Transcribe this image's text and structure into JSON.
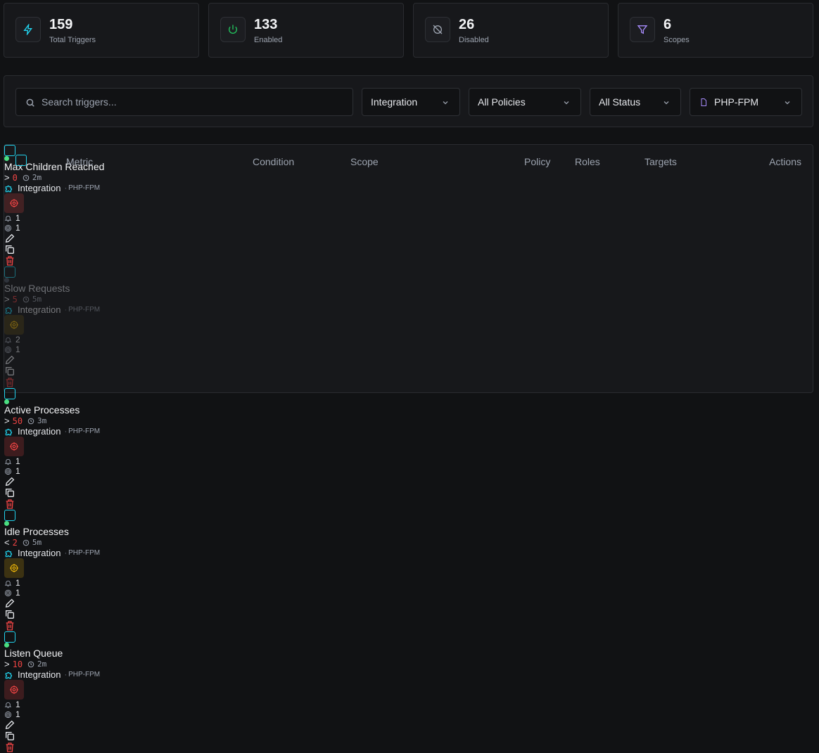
{
  "stats": [
    {
      "value": 159,
      "label": "Total Triggers"
    },
    {
      "value": 133,
      "label": "Enabled"
    },
    {
      "value": 26,
      "label": "Disabled"
    },
    {
      "value": 6,
      "label": "Scopes"
    }
  ],
  "filters": {
    "search_placeholder": "Search triggers...",
    "dropdowns": [
      "Integration",
      "All Policies",
      "All Status",
      "PHP-FPM"
    ]
  },
  "table": {
    "headers": [
      "Metric",
      "Condition",
      "Scope",
      "Policy",
      "Roles",
      "Targets",
      "Actions"
    ],
    "rows": [
      {
        "metric": "Max Children Reached",
        "enabled": true,
        "operator": ">",
        "threshold": 0,
        "duration": "2m",
        "scope": "Integration",
        "scope_detail": "PHP-FPM",
        "policy_color": "#ef4444",
        "roles": 1,
        "targets": 1
      },
      {
        "metric": "Slow Requests",
        "enabled": false,
        "operator": ">",
        "threshold": 5,
        "duration": "5m",
        "scope": "Integration",
        "scope_detail": "PHP-FPM",
        "policy_color": "#eab308",
        "roles": 2,
        "targets": 1
      },
      {
        "metric": "Active Processes",
        "enabled": true,
        "operator": ">",
        "threshold": 50,
        "duration": "3m",
        "scope": "Integration",
        "scope_detail": "PHP-FPM",
        "policy_color": "#ef4444",
        "roles": 1,
        "targets": 1
      },
      {
        "metric": "Idle Processes",
        "enabled": true,
        "operator": "<",
        "threshold": 2,
        "duration": "5m",
        "scope": "Integration",
        "scope_detail": "PHP-FPM",
        "policy_color": "#eab308",
        "roles": 1,
        "targets": 1
      },
      {
        "metric": "Listen Queue",
        "enabled": true,
        "operator": ">",
        "threshold": 10,
        "duration": "2m",
        "scope": "Integration",
        "scope_detail": "PHP-FPM",
        "policy_color": "#ef4444",
        "roles": 1,
        "targets": 1
      }
    ]
  }
}
